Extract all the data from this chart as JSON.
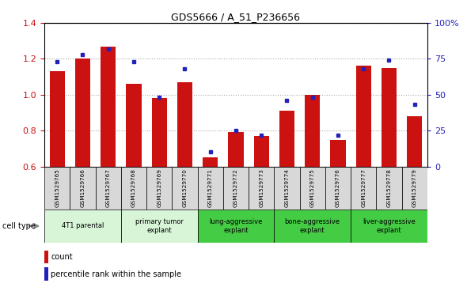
{
  "title": "GDS5666 / A_51_P236656",
  "samples": [
    "GSM1529765",
    "GSM1529766",
    "GSM1529767",
    "GSM1529768",
    "GSM1529769",
    "GSM1529770",
    "GSM1529771",
    "GSM1529772",
    "GSM1529773",
    "GSM1529774",
    "GSM1529775",
    "GSM1529776",
    "GSM1529777",
    "GSM1529778",
    "GSM1529779"
  ],
  "count_values": [
    1.13,
    1.2,
    1.27,
    1.06,
    0.98,
    1.07,
    0.65,
    0.79,
    0.77,
    0.91,
    1.0,
    0.75,
    1.16,
    1.15,
    0.88
  ],
  "percentile_values": [
    73,
    78,
    82,
    73,
    48,
    68,
    10,
    25,
    22,
    46,
    48,
    22,
    68,
    74,
    43
  ],
  "ylim_left": [
    0.6,
    1.4
  ],
  "ylim_right": [
    0,
    100
  ],
  "yticks_left": [
    0.6,
    0.8,
    1.0,
    1.2,
    1.4
  ],
  "yticks_right": [
    0,
    25,
    50,
    75,
    100
  ],
  "yticklabels_right": [
    "0",
    "25",
    "50",
    "75",
    "100%"
  ],
  "count_color": "#cc1111",
  "percentile_color": "#2222bb",
  "cell_type_groups": [
    {
      "label": "4T1 parental",
      "indices": [
        0,
        1,
        2
      ],
      "color": "#d8f5d8"
    },
    {
      "label": "primary tumor\nexplant",
      "indices": [
        3,
        4,
        5
      ],
      "color": "#d8f5d8"
    },
    {
      "label": "lung-aggressive\nexplant",
      "indices": [
        6,
        7,
        8
      ],
      "color": "#44cc44"
    },
    {
      "label": "bone-aggressive\nexplant",
      "indices": [
        9,
        10,
        11
      ],
      "color": "#44cc44"
    },
    {
      "label": "liver-aggressive\nexplant",
      "indices": [
        12,
        13,
        14
      ],
      "color": "#44cc44"
    }
  ],
  "bar_width": 0.6,
  "legend_items": [
    {
      "label": "count",
      "color": "#cc1111"
    },
    {
      "label": "percentile rank within the sample",
      "color": "#2222bb"
    }
  ],
  "cell_type_label": "cell type"
}
